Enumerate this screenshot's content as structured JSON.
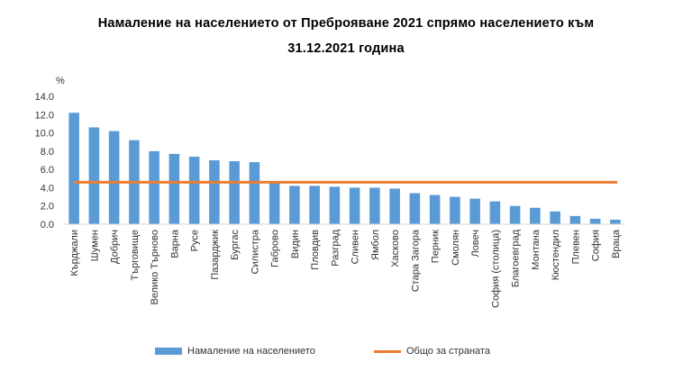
{
  "title_line1": "Намаление на населението от Преброяване 2021 спрямо населението към",
  "title_line2": "31.12.2021 година",
  "chart_data": {
    "type": "bar",
    "ylabel": "%",
    "ylim": [
      0,
      14
    ],
    "yticks": [
      "14.0",
      "12.0",
      "10.0",
      "8.0",
      "6.0",
      "4.0",
      "2.0",
      "0.0"
    ],
    "yticks_values": [
      14,
      12,
      10,
      8,
      6,
      4,
      2,
      0
    ],
    "categories": [
      "Кърджали",
      "Шумен",
      "Добрич",
      "Търговище",
      "Велико Търново",
      "Варна",
      "Русе",
      "Пазарджик",
      "Бургас",
      "Силистра",
      "Габрово",
      "Видин",
      "Пловдив",
      "Разград",
      "Сливен",
      "Ямбол",
      "Хасково",
      "Стара Загора",
      "Перник",
      "Смолян",
      "Ловеч",
      "София (столица)",
      "Благоевград",
      "Монтана",
      "Кюстендил",
      "Плевен",
      "София",
      "Враца"
    ],
    "series": [
      {
        "name": "Намаление на населението",
        "type": "bar",
        "color": "#5b9bd5",
        "values": [
          12.2,
          10.6,
          10.2,
          9.2,
          8.0,
          7.7,
          7.4,
          7.0,
          6.9,
          6.8,
          4.5,
          4.2,
          4.2,
          4.1,
          4.0,
          4.0,
          3.9,
          3.4,
          3.2,
          3.0,
          2.8,
          2.5,
          2.0,
          1.8,
          1.4,
          0.9,
          0.6,
          0.5
        ]
      },
      {
        "name": "Общо за страната",
        "type": "line",
        "color": "#ed7d31",
        "value": 4.6
      }
    ],
    "grid": false,
    "legend_position": "bottom"
  }
}
